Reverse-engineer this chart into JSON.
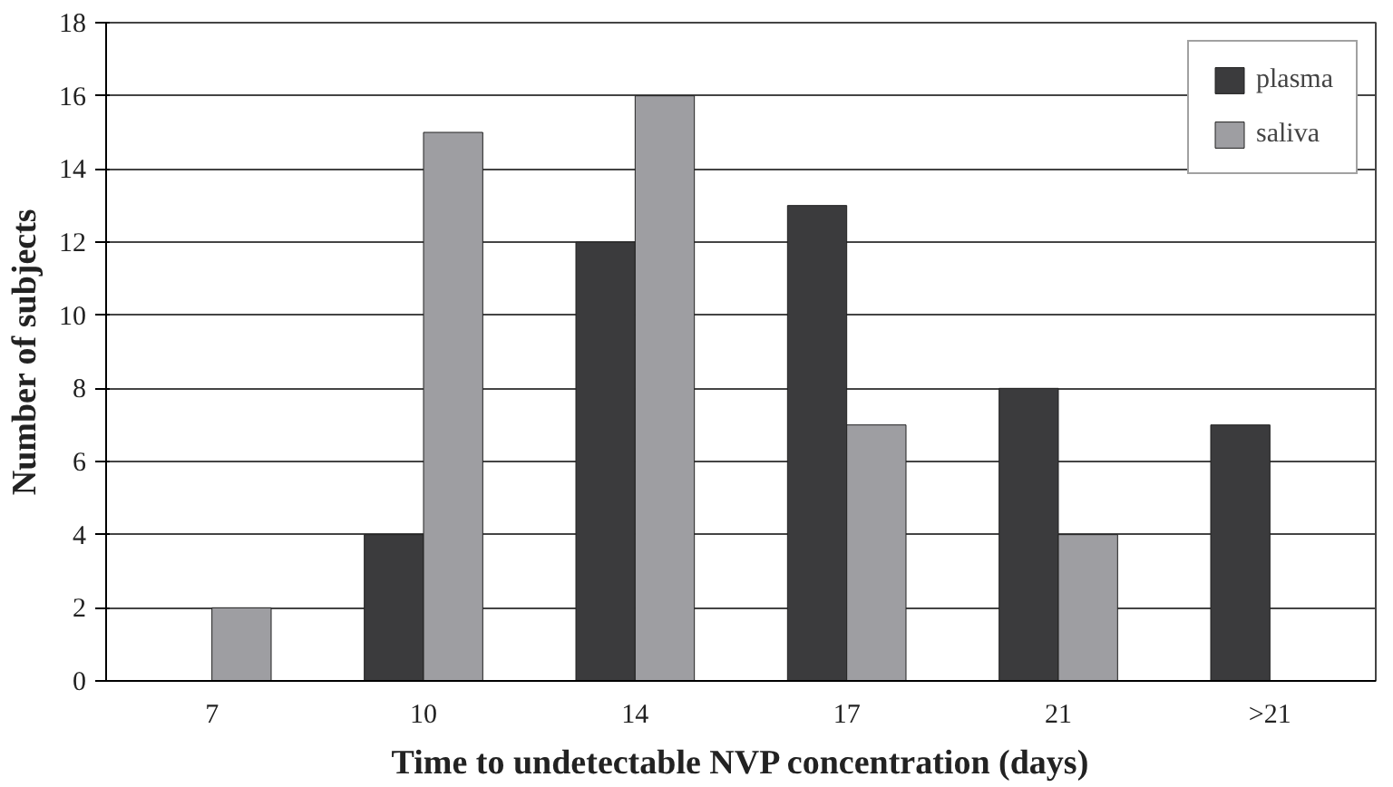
{
  "chart_data": {
    "type": "bar",
    "xlabel": "Time to undetectable NVP concentration (days)",
    "ylabel": "Number of subjects",
    "categories": [
      "7",
      "10",
      "14",
      "17",
      "21",
      ">21"
    ],
    "series": [
      {
        "name": "plasma",
        "color": "#3b3b3d",
        "values": [
          null,
          4,
          12,
          13,
          8,
          7
        ]
      },
      {
        "name": "saliva",
        "color": "#9e9ea2",
        "values": [
          2,
          15,
          16,
          7,
          4,
          null
        ]
      }
    ],
    "ylim": [
      0,
      18
    ],
    "yticks": [
      0,
      2,
      4,
      6,
      8,
      10,
      12,
      14,
      16,
      18
    ],
    "grid": "y",
    "legend": "top right"
  }
}
